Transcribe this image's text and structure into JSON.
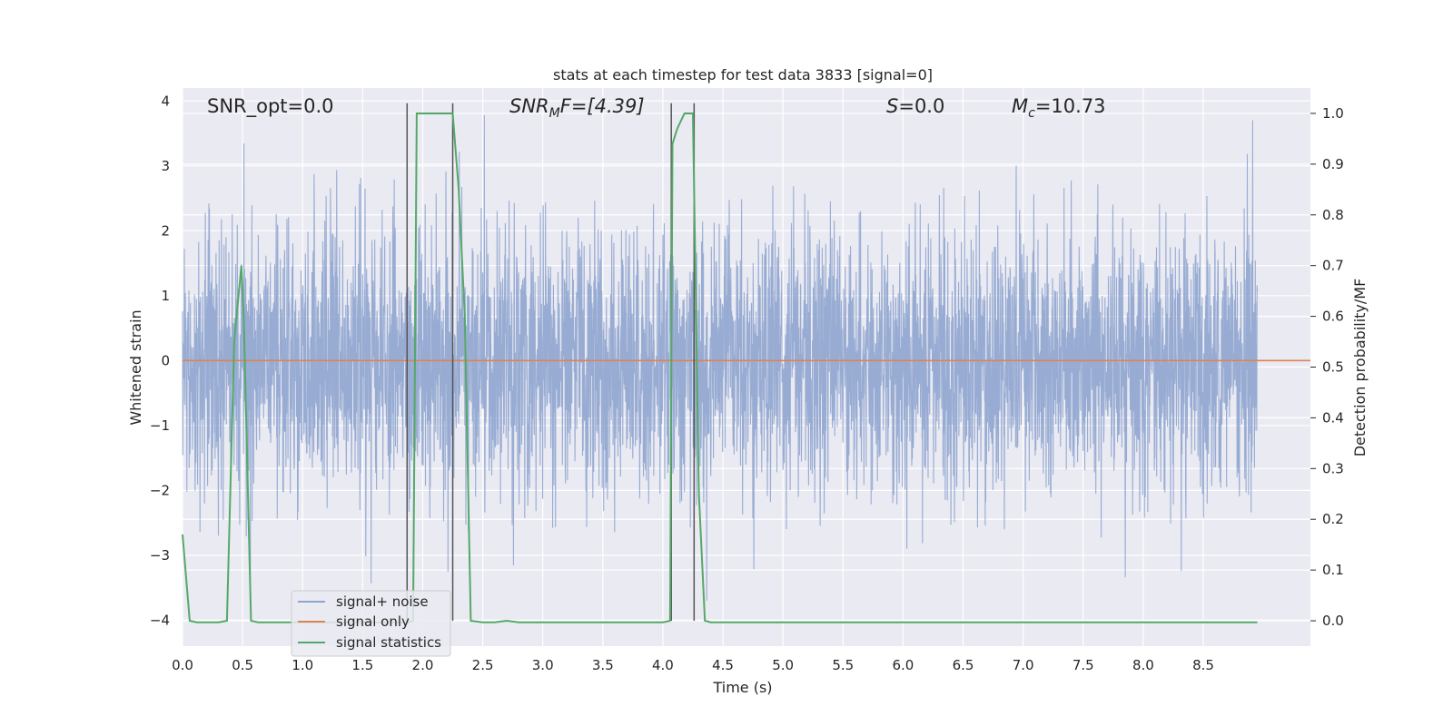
{
  "chart_data": {
    "type": "line",
    "title": "stats at each timestep for test data 3833 [signal=0]",
    "xlabel": "Time (s)",
    "ylabel": "Whitened strain",
    "y2label": "Detection probability/MF",
    "xlim": [
      0.0,
      9.0
    ],
    "ylim": [
      -4.4,
      4.2
    ],
    "y2lim": [
      -0.05,
      1.05
    ],
    "xticks": [
      "0.0",
      "0.5",
      "1.0",
      "1.5",
      "2.0",
      "2.5",
      "3.0",
      "3.5",
      "4.0",
      "4.5",
      "5.0",
      "5.5",
      "6.0",
      "6.5",
      "7.0",
      "7.5",
      "8.0",
      "8.5"
    ],
    "yticks": [
      "−4",
      "−3",
      "−2",
      "−1",
      "0",
      "1",
      "2",
      "3",
      "4"
    ],
    "y2ticks": [
      "0.0",
      "0.1",
      "0.2",
      "0.3",
      "0.4",
      "0.5",
      "0.6",
      "0.7",
      "0.8",
      "0.9",
      "1.0"
    ],
    "grid": true,
    "legend_position": "lower-left",
    "annotations": {
      "snr_opt": "SNR_opt=0.0",
      "snr_mf_main": "SNR",
      "snr_mf_sub": "M",
      "snr_mf_rest": "F=[4.39]",
      "s_main": "S",
      "s_rest": "=0.0",
      "mc_main": "M",
      "mc_sub": "c",
      "mc_rest": "=10.73"
    },
    "series": [
      {
        "name": "signal+ noise",
        "color": "#8fa5cf",
        "kind": "noise",
        "envelope_typical": [
          -1.7,
          1.9
        ],
        "extremes_max": 3.9,
        "extremes_min": -3.7
      },
      {
        "name": "signal only",
        "color": "#dd8452",
        "kind": "constant",
        "value": 0.0
      },
      {
        "name": "signal statistics",
        "color": "#55a868",
        "axis": "right",
        "x": [
          0.0,
          0.06,
          0.12,
          0.2,
          0.3,
          0.37,
          0.43,
          0.49,
          0.51,
          0.57,
          0.63,
          0.7,
          1.0,
          1.5,
          1.85,
          1.88,
          1.92,
          1.95,
          2.0,
          2.1,
          2.2,
          2.25,
          2.3,
          2.35,
          2.4,
          2.5,
          2.6,
          2.7,
          2.8,
          3.0,
          3.5,
          4.0,
          4.06,
          4.08,
          4.12,
          4.18,
          4.25,
          4.3,
          4.35,
          4.4,
          5.0,
          6.0,
          7.0,
          8.0,
          8.95
        ],
        "y": [
          0.17,
          0.0,
          -0.003,
          -0.003,
          -0.003,
          0.0,
          0.55,
          0.7,
          0.6,
          0.0,
          -0.003,
          -0.003,
          -0.003,
          -0.003,
          -0.003,
          -0.003,
          0.0,
          1.0,
          1.0,
          1.0,
          1.0,
          1.0,
          0.85,
          0.6,
          0.0,
          -0.003,
          -0.003,
          0.0,
          -0.003,
          -0.003,
          -0.003,
          -0.003,
          0.0,
          0.94,
          0.97,
          1.0,
          1.0,
          0.25,
          0.0,
          -0.003,
          -0.003,
          -0.003,
          -0.003,
          -0.003,
          -0.003
        ]
      }
    ],
    "vlines": [
      1.87,
      2.25,
      4.07,
      4.26
    ]
  }
}
